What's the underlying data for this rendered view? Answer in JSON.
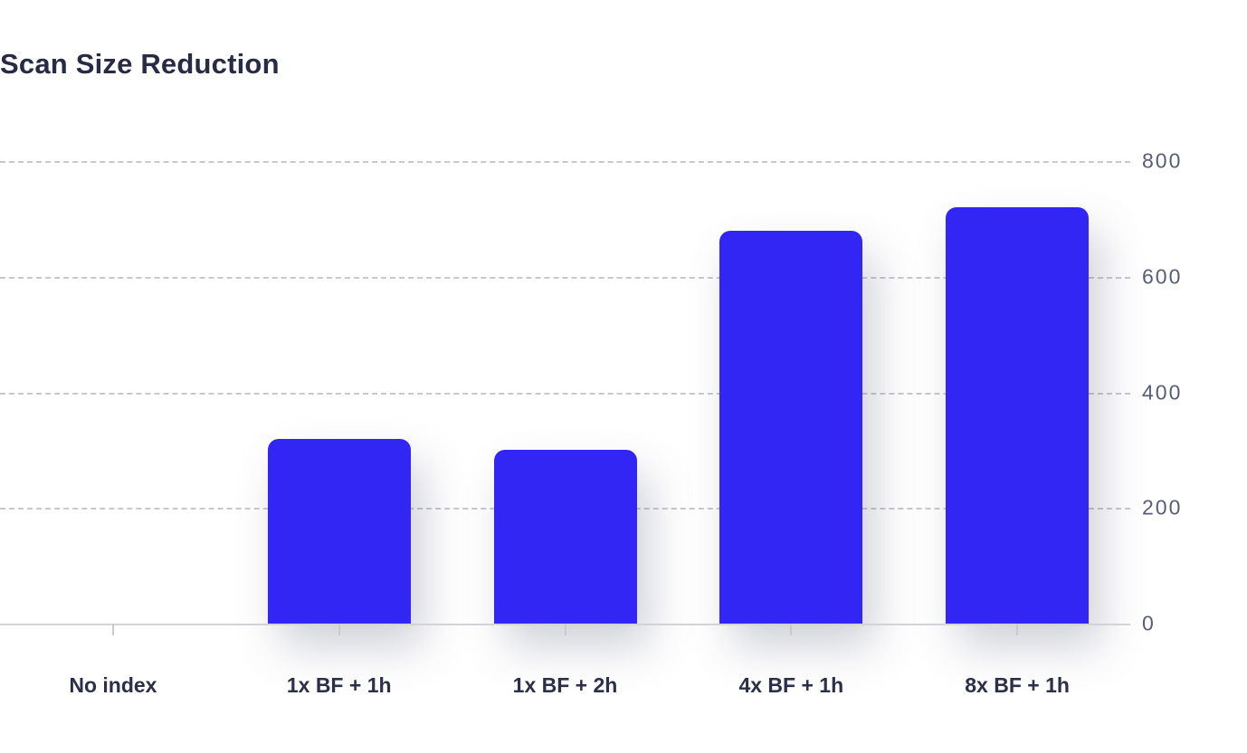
{
  "title": "Scan Size Reduction",
  "colors": {
    "bar": "#3226f5",
    "title_text": "#272b45",
    "axis_label_text": "#565d75",
    "category_label_text": "#2b3048",
    "gridline": "#c8c8ce",
    "axis_line": "#d2d2d7",
    "background": "#ffffff"
  },
  "chart_data": {
    "type": "bar",
    "title": "Scan Size Reduction",
    "categories": [
      "No index",
      "1x BF + 1h",
      "1x BF + 2h",
      "4x BF + 1h",
      "8x BF + 1h"
    ],
    "values": [
      0,
      320,
      300,
      680,
      720
    ],
    "xlabel": "",
    "ylabel": "",
    "ylim": [
      0,
      800
    ],
    "yticks": [
      0,
      200,
      400,
      600,
      800
    ],
    "y_axis_side": "right",
    "grid": "horizontal-dashed",
    "legend": "none",
    "bar_corner_radius": "rounded-top"
  }
}
